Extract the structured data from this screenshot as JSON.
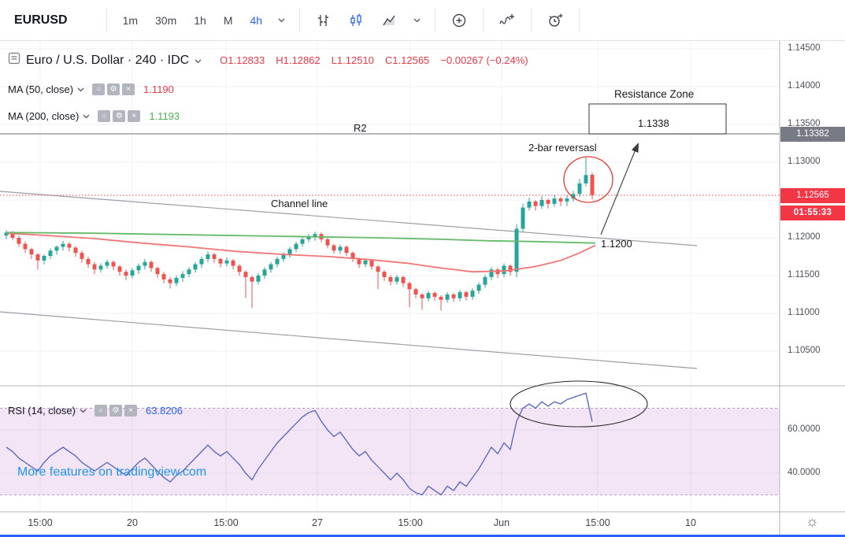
{
  "toolbar": {
    "symbol": "EURUSD",
    "intervals": [
      "1m",
      "30m",
      "1h",
      "M",
      "4h"
    ],
    "active_interval": "4h"
  },
  "legend": {
    "title": "Euro / U.S. Dollar · 240 · IDC",
    "ohlc": [
      "O1.12833",
      "H1.12862",
      "L1.12510",
      "C1.12565",
      "−0.00267 (−0.24%)"
    ],
    "ma50": {
      "label": "MA (50, close)",
      "value": "1.1190"
    },
    "ma200": {
      "label": "MA (200, close)",
      "value": "1.1193"
    },
    "rsi": {
      "label": "RSI (14, close)",
      "value": "63.8206"
    }
  },
  "annotations": {
    "r2": "R2",
    "channel": "Channel line",
    "reversal": "2-bar reversasl",
    "level": "1.1200",
    "zone_title": "Resistance Zone",
    "zone_value": "1.1338"
  },
  "price_axis": {
    "labels": [
      "1.14500",
      "1.14000",
      "1.13500",
      "1.13000",
      "1.12000",
      "1.11500",
      "1.11000",
      "1.10500"
    ],
    "rsi_labels": [
      "60.0000",
      "40.0000"
    ],
    "badge_level": "1.13382",
    "badge_price": "1.12565",
    "badge_countdown": "01:55:33"
  },
  "time_axis": {
    "labels": [
      "15:00",
      "20",
      "15:00",
      "27",
      "15:00",
      "Jun",
      "15:00",
      "10"
    ]
  },
  "watermark": "More features on tradingview.com",
  "chart_data": {
    "type": "candlestick",
    "symbol": "EURUSD",
    "interval": "240",
    "price_ylim": [
      1.1046,
      1.146
    ],
    "rsi_ylim": [
      25,
      85
    ],
    "rsi_band": [
      30,
      70
    ],
    "rsi_last": 63.8206,
    "levels": {
      "resistance": 1.1338,
      "current_price": 1.12565,
      "noted_support": 1.12
    },
    "colors": {
      "up": "#26a69a",
      "down": "#ef5350",
      "ma50": "#f07575",
      "ma200": "#66bb6a",
      "rsi": "#5c6bc0",
      "band": "#9c27b0",
      "accent_blue": "#2962ff",
      "badge_red": "#f23645",
      "badge_gray": "#787b86"
    },
    "candles": [
      [
        1.1203,
        1.121,
        1.1198,
        1.1207
      ],
      [
        1.1207,
        1.1209,
        1.1197,
        1.12
      ],
      [
        1.12,
        1.1203,
        1.1188,
        1.1192
      ],
      [
        1.1192,
        1.1195,
        1.118,
        1.1185
      ],
      [
        1.1185,
        1.1187,
        1.1172,
        1.1178
      ],
      [
        1.1178,
        1.118,
        1.1158,
        1.117
      ],
      [
        1.117,
        1.1178,
        1.1165,
        1.1176
      ],
      [
        1.1176,
        1.1186,
        1.1172,
        1.1183
      ],
      [
        1.1183,
        1.119,
        1.1178,
        1.1188
      ],
      [
        1.1188,
        1.1196,
        1.1183,
        1.1192
      ],
      [
        1.1192,
        1.1194,
        1.1182,
        1.1187
      ],
      [
        1.1187,
        1.1189,
        1.1175,
        1.118
      ],
      [
        1.118,
        1.1183,
        1.1167,
        1.1172
      ],
      [
        1.1172,
        1.1175,
        1.116,
        1.1165
      ],
      [
        1.1165,
        1.1168,
        1.1152,
        1.1158
      ],
      [
        1.1158,
        1.1166,
        1.1154,
        1.1163
      ],
      [
        1.1163,
        1.1171,
        1.1159,
        1.1168
      ],
      [
        1.1168,
        1.117,
        1.1157,
        1.1162
      ],
      [
        1.1162,
        1.1164,
        1.115,
        1.1155
      ],
      [
        1.1155,
        1.1158,
        1.1144,
        1.115
      ],
      [
        1.115,
        1.116,
        1.1146,
        1.1157
      ],
      [
        1.1157,
        1.1166,
        1.1152,
        1.1163
      ],
      [
        1.1163,
        1.1172,
        1.1158,
        1.1168
      ],
      [
        1.1168,
        1.117,
        1.1155,
        1.116
      ],
      [
        1.116,
        1.1162,
        1.1147,
        1.1152
      ],
      [
        1.1152,
        1.1155,
        1.114,
        1.1145
      ],
      [
        1.1145,
        1.1148,
        1.1133,
        1.114
      ],
      [
        1.114,
        1.115,
        1.1136,
        1.1147
      ],
      [
        1.1147,
        1.1156,
        1.1142,
        1.1152
      ],
      [
        1.1152,
        1.1161,
        1.1148,
        1.1158
      ],
      [
        1.1158,
        1.1168,
        1.1154,
        1.1165
      ],
      [
        1.1165,
        1.1175,
        1.116,
        1.1172
      ],
      [
        1.1172,
        1.1182,
        1.1168,
        1.1178
      ],
      [
        1.1178,
        1.118,
        1.1167,
        1.1172
      ],
      [
        1.1172,
        1.1174,
        1.1161,
        1.1166
      ],
      [
        1.1166,
        1.1174,
        1.1162,
        1.117
      ],
      [
        1.117,
        1.1172,
        1.1158,
        1.1163
      ],
      [
        1.1163,
        1.1165,
        1.115,
        1.1155
      ],
      [
        1.1155,
        1.1157,
        1.112,
        1.1148
      ],
      [
        1.1148,
        1.115,
        1.1107,
        1.1142
      ],
      [
        1.1142,
        1.1153,
        1.1138,
        1.115
      ],
      [
        1.115,
        1.1161,
        1.1146,
        1.1158
      ],
      [
        1.1158,
        1.1168,
        1.1154,
        1.1165
      ],
      [
        1.1165,
        1.1175,
        1.1161,
        1.1172
      ],
      [
        1.1172,
        1.1181,
        1.1168,
        1.1178
      ],
      [
        1.1178,
        1.1188,
        1.1174,
        1.1185
      ],
      [
        1.1185,
        1.1195,
        1.1181,
        1.1192
      ],
      [
        1.1192,
        1.1201,
        1.1188,
        1.1198
      ],
      [
        1.1198,
        1.1205,
        1.1194,
        1.1202
      ],
      [
        1.1202,
        1.1208,
        1.1196,
        1.1205
      ],
      [
        1.1205,
        1.1207,
        1.1194,
        1.1198
      ],
      [
        1.1198,
        1.12,
        1.1186,
        1.119
      ],
      [
        1.119,
        1.1192,
        1.1179,
        1.1183
      ],
      [
        1.1183,
        1.1191,
        1.1179,
        1.1188
      ],
      [
        1.1188,
        1.119,
        1.1176,
        1.118
      ],
      [
        1.118,
        1.1182,
        1.1168,
        1.1172
      ],
      [
        1.1172,
        1.1174,
        1.116,
        1.1165
      ],
      [
        1.1165,
        1.1173,
        1.1161,
        1.117
      ],
      [
        1.117,
        1.1172,
        1.1158,
        1.1162
      ],
      [
        1.1162,
        1.1164,
        1.1132,
        1.1155
      ],
      [
        1.1155,
        1.1157,
        1.1143,
        1.1148
      ],
      [
        1.1148,
        1.115,
        1.1137,
        1.1142
      ],
      [
        1.1142,
        1.1151,
        1.1138,
        1.1148
      ],
      [
        1.1148,
        1.115,
        1.1135,
        1.114
      ],
      [
        1.114,
        1.1142,
        1.1108,
        1.1132
      ],
      [
        1.1132,
        1.1134,
        1.112,
        1.1125
      ],
      [
        1.1125,
        1.1127,
        1.1105,
        1.112
      ],
      [
        1.112,
        1.113,
        1.1116,
        1.1127
      ],
      [
        1.1127,
        1.1129,
        1.1117,
        1.1122
      ],
      [
        1.1122,
        1.1124,
        1.1104,
        1.1118
      ],
      [
        1.1118,
        1.1128,
        1.1114,
        1.1125
      ],
      [
        1.1125,
        1.1127,
        1.1115,
        1.112
      ],
      [
        1.112,
        1.1131,
        1.1116,
        1.1128
      ],
      [
        1.1128,
        1.113,
        1.1117,
        1.1122
      ],
      [
        1.1122,
        1.1133,
        1.1118,
        1.113
      ],
      [
        1.113,
        1.1141,
        1.1126,
        1.1138
      ],
      [
        1.1138,
        1.1151,
        1.1134,
        1.1148
      ],
      [
        1.1148,
        1.1161,
        1.1144,
        1.1158
      ],
      [
        1.1158,
        1.116,
        1.1147,
        1.1152
      ],
      [
        1.1152,
        1.1166,
        1.1148,
        1.1163
      ],
      [
        1.1163,
        1.1165,
        1.115,
        1.1155
      ],
      [
        1.1155,
        1.1218,
        1.1148,
        1.1212
      ],
      [
        1.1212,
        1.1245,
        1.1208,
        1.124
      ],
      [
        1.124,
        1.1253,
        1.1236,
        1.1248
      ],
      [
        1.1248,
        1.125,
        1.1236,
        1.1242
      ],
      [
        1.1242,
        1.1255,
        1.1238,
        1.125
      ],
      [
        1.125,
        1.1252,
        1.1239,
        1.1245
      ],
      [
        1.1245,
        1.1257,
        1.1241,
        1.1252
      ],
      [
        1.1252,
        1.1254,
        1.1242,
        1.1248
      ],
      [
        1.1248,
        1.1256,
        1.1242,
        1.1252
      ],
      [
        1.1252,
        1.1262,
        1.1248,
        1.1258
      ],
      [
        1.1258,
        1.1278,
        1.1254,
        1.1272
      ],
      [
        1.1272,
        1.1306,
        1.1268,
        1.1283
      ],
      [
        1.12833,
        1.12862,
        1.1251,
        1.12565
      ]
    ],
    "ma50_points": [
      [
        8,
        1.1206
      ],
      [
        60,
        1.1203
      ],
      [
        120,
        1.1199
      ],
      [
        180,
        1.1193
      ],
      [
        240,
        1.1188
      ],
      [
        300,
        1.1182
      ],
      [
        360,
        1.1178
      ],
      [
        420,
        1.1175
      ],
      [
        470,
        1.1171
      ],
      [
        520,
        1.1166
      ],
      [
        560,
        1.116
      ],
      [
        600,
        1.1155
      ],
      [
        640,
        1.1156
      ],
      [
        680,
        1.1162
      ],
      [
        712,
        1.117
      ],
      [
        736,
        1.118
      ],
      [
        756,
        1.119
      ]
    ],
    "ma200_points": [
      [
        8,
        1.1207
      ],
      [
        120,
        1.1206
      ],
      [
        240,
        1.1204
      ],
      [
        360,
        1.1202
      ],
      [
        480,
        1.12
      ],
      [
        560,
        1.1198
      ],
      [
        620,
        1.1196
      ],
      [
        680,
        1.1195
      ],
      [
        720,
        1.1194
      ],
      [
        756,
        1.1193
      ]
    ],
    "rsi_values": [
      52,
      50,
      47,
      45,
      43,
      41,
      45,
      48,
      50,
      52,
      50,
      48,
      45,
      43,
      41,
      43,
      45,
      43,
      41,
      39,
      42,
      45,
      47,
      44,
      41,
      38,
      36,
      39,
      41,
      44,
      47,
      50,
      53,
      50,
      48,
      50,
      47,
      44,
      40,
      37,
      42,
      46,
      50,
      54,
      57,
      60,
      63,
      66,
      68,
      69,
      64,
      60,
      57,
      59,
      55,
      51,
      48,
      50,
      46,
      43,
      40,
      37,
      40,
      37,
      33,
      31,
      30,
      34,
      32,
      30,
      34,
      32,
      36,
      34,
      38,
      42,
      47,
      52,
      49,
      54,
      51,
      64,
      70,
      72,
      70,
      73,
      71,
      73,
      72,
      74,
      75,
      76,
      77,
      63.82
    ]
  }
}
